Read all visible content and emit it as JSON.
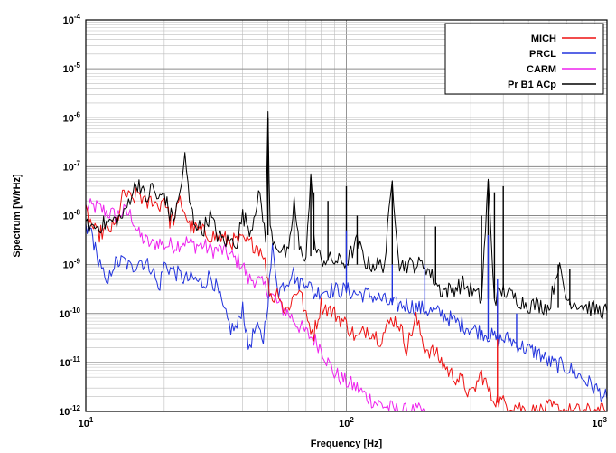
{
  "chart_data": {
    "type": "line",
    "xlabel": "Frequency [Hz]",
    "ylabel": "Spectrum [W/rHz]",
    "x_scale": "log",
    "y_scale": "log",
    "xlim": [
      10,
      1000
    ],
    "ylim": [
      1e-12,
      0.0001
    ],
    "x_ticks": [
      {
        "value": 10,
        "mantissa": "10",
        "exp": "1"
      },
      {
        "value": 100,
        "mantissa": "10",
        "exp": "2"
      },
      {
        "value": 1000,
        "mantissa": "10",
        "exp": "3"
      }
    ],
    "y_ticks": [
      {
        "value": 0.0001,
        "mantissa": "10",
        "exp": "-4"
      },
      {
        "value": 1e-05,
        "mantissa": "10",
        "exp": "-5"
      },
      {
        "value": 1e-06,
        "mantissa": "10",
        "exp": "-6"
      },
      {
        "value": 1e-07,
        "mantissa": "10",
        "exp": "-7"
      },
      {
        "value": 1e-08,
        "mantissa": "10",
        "exp": "-8"
      },
      {
        "value": 1e-09,
        "mantissa": "10",
        "exp": "-9"
      },
      {
        "value": 1e-10,
        "mantissa": "10",
        "exp": "-10"
      },
      {
        "value": 1e-11,
        "mantissa": "10",
        "exp": "-11"
      },
      {
        "value": 1e-12,
        "mantissa": "10",
        "exp": "-12"
      }
    ],
    "grid": true,
    "legend_position": "top-right",
    "series": [
      {
        "name": "MICH",
        "color": "#ee1111",
        "points": [
          [
            10,
            1.2e-08
          ],
          [
            11,
            4e-09
          ],
          [
            12,
            5e-09
          ],
          [
            13,
            6e-09
          ],
          [
            14,
            3e-08
          ],
          [
            15,
            2e-08
          ],
          [
            16,
            3e-08
          ],
          [
            17,
            1.6e-08
          ],
          [
            18,
            2.2e-08
          ],
          [
            19,
            1.5e-08
          ],
          [
            20,
            2.5e-08
          ],
          [
            21,
            8e-09
          ],
          [
            22,
            9e-09
          ],
          [
            23,
            2e-08
          ],
          [
            24,
            1.2e-08
          ],
          [
            25,
            6e-09
          ],
          [
            27,
            5e-09
          ],
          [
            30,
            4e-09
          ],
          [
            33,
            3.5e-09
          ],
          [
            36,
            3e-09
          ],
          [
            40,
            3e-09
          ],
          [
            45,
            2.5e-09
          ],
          [
            48,
            1.8e-09
          ],
          [
            50,
            4e-10
          ],
          [
            52,
            2e-10
          ],
          [
            55,
            3e-10
          ],
          [
            58,
            1e-10
          ],
          [
            62,
            2e-10
          ],
          [
            66,
            3.5e-10
          ],
          [
            70,
            8e-11
          ],
          [
            75,
            4e-11
          ],
          [
            80,
            1.5e-10
          ],
          [
            90,
            1e-10
          ],
          [
            100,
            6e-11
          ],
          [
            110,
            3e-11
          ],
          [
            120,
            5e-11
          ],
          [
            135,
            3e-11
          ],
          [
            150,
            8e-11
          ],
          [
            160,
            6e-11
          ],
          [
            170,
            2e-11
          ],
          [
            185,
            8e-11
          ],
          [
            200,
            2e-11
          ],
          [
            220,
            1.5e-11
          ],
          [
            250,
            6e-12
          ],
          [
            280,
            4e-12
          ],
          [
            300,
            2e-12
          ],
          [
            330,
            6e-12
          ],
          [
            360,
            2e-12
          ],
          [
            400,
            1.5e-12
          ],
          [
            450,
            1.3e-12
          ],
          [
            500,
            1e-12
          ],
          [
            550,
            1e-12
          ],
          [
            600,
            1.2e-12
          ],
          [
            700,
            1e-12
          ],
          [
            800,
            1e-12
          ],
          [
            900,
            1e-12
          ],
          [
            1000,
            1e-12
          ]
        ]
      },
      {
        "name": "PRCL",
        "color": "#2233dd",
        "points": [
          [
            10,
            5e-09
          ],
          [
            10.5,
            5e-09
          ],
          [
            11,
            1.5e-09
          ],
          [
            11.5,
            1e-09
          ],
          [
            12,
            3e-10
          ],
          [
            12.7,
            1e-09
          ],
          [
            14,
            1.2e-09
          ],
          [
            15,
            8e-10
          ],
          [
            16,
            1.3e-09
          ],
          [
            17,
            1e-09
          ],
          [
            18,
            9e-10
          ],
          [
            19,
            3e-10
          ],
          [
            20,
            1e-09
          ],
          [
            22,
            7e-10
          ],
          [
            24,
            5e-10
          ],
          [
            26,
            5e-10
          ],
          [
            28,
            4e-10
          ],
          [
            30,
            6e-10
          ],
          [
            32,
            3e-10
          ],
          [
            34,
            1e-10
          ],
          [
            36,
            5e-11
          ],
          [
            38,
            5e-11
          ],
          [
            40,
            1.5e-10
          ],
          [
            42,
            2e-11
          ],
          [
            45,
            5e-11
          ],
          [
            48,
            3e-11
          ],
          [
            50,
            2e-10
          ],
          [
            52,
            2e-09
          ],
          [
            55,
            3e-10
          ],
          [
            60,
            5e-10
          ],
          [
            62,
            8e-10
          ],
          [
            65,
            4e-10
          ],
          [
            70,
            5e-10
          ],
          [
            75,
            2.5e-10
          ],
          [
            80,
            3e-10
          ],
          [
            90,
            3e-10
          ],
          [
            100,
            3e-10
          ],
          [
            110,
            2.5e-10
          ],
          [
            120,
            2.5e-10
          ],
          [
            135,
            2e-10
          ],
          [
            150,
            1.5e-10
          ],
          [
            170,
            1.5e-10
          ],
          [
            200,
            1.2e-10
          ],
          [
            230,
            1e-10
          ],
          [
            260,
            7e-11
          ],
          [
            300,
            5e-11
          ],
          [
            340,
            4e-11
          ],
          [
            380,
            3e-11
          ],
          [
            420,
            3e-11
          ],
          [
            480,
            2e-11
          ],
          [
            550,
            1.5e-11
          ],
          [
            600,
            1e-11
          ],
          [
            700,
            8e-12
          ],
          [
            800,
            5e-12
          ],
          [
            900,
            3e-12
          ],
          [
            1000,
            1.8e-12
          ]
        ]
      },
      {
        "name": "CARM",
        "color": "#ee22ee",
        "points": [
          [
            10,
            1.5e-08
          ],
          [
            11,
            1.5e-08
          ],
          [
            12,
            1.2e-08
          ],
          [
            13,
            1e-08
          ],
          [
            14,
            1.2e-08
          ],
          [
            15,
            1e-08
          ],
          [
            16,
            4e-09
          ],
          [
            17,
            3e-09
          ],
          [
            18,
            2.5e-09
          ],
          [
            19,
            3e-09
          ],
          [
            20,
            2.5e-09
          ],
          [
            22,
            2.5e-09
          ],
          [
            24,
            3e-09
          ],
          [
            26,
            2.5e-09
          ],
          [
            28,
            2.5e-09
          ],
          [
            30,
            2e-09
          ],
          [
            33,
            2e-09
          ],
          [
            36,
            1.5e-09
          ],
          [
            40,
            1e-09
          ],
          [
            42,
            5e-10
          ],
          [
            45,
            5e-10
          ],
          [
            50,
            3e-10
          ],
          [
            55,
            1.5e-10
          ],
          [
            60,
            1e-10
          ],
          [
            65,
            6e-11
          ],
          [
            70,
            4e-11
          ],
          [
            75,
            3e-11
          ],
          [
            80,
            2e-11
          ],
          [
            85,
            1e-11
          ],
          [
            90,
            6e-12
          ],
          [
            100,
            4e-12
          ],
          [
            110,
            3e-12
          ],
          [
            120,
            2e-12
          ],
          [
            130,
            1.5e-12
          ],
          [
            140,
            1.3e-12
          ],
          [
            160,
            1e-12
          ],
          [
            180,
            1e-12
          ],
          [
            200,
            1e-12
          ]
        ]
      },
      {
        "name": "Pr B1 ACp",
        "color": "#000000",
        "points": [
          [
            10,
            6e-09
          ],
          [
            11,
            6e-09
          ],
          [
            12,
            7e-09
          ],
          [
            13,
            8e-09
          ],
          [
            14,
            1e-08
          ],
          [
            15,
            3e-08
          ],
          [
            16,
            5e-08
          ],
          [
            17,
            2e-08
          ],
          [
            18,
            4e-08
          ],
          [
            19,
            2e-08
          ],
          [
            20,
            3e-08
          ],
          [
            21,
            1e-08
          ],
          [
            22,
            1e-08
          ],
          [
            23,
            3e-08
          ],
          [
            24,
            1.5e-07
          ],
          [
            25,
            2e-08
          ],
          [
            26,
            8e-09
          ],
          [
            28,
            5e-09
          ],
          [
            30,
            1e-08
          ],
          [
            32,
            4e-09
          ],
          [
            34,
            3e-09
          ],
          [
            36,
            3e-09
          ],
          [
            38,
            3e-09
          ],
          [
            40,
            1e-08
          ],
          [
            43,
            5e-09
          ],
          [
            46,
            3e-08
          ],
          [
            49,
            4e-09
          ],
          [
            50,
            1e-06
          ],
          [
            51,
            5e-09
          ],
          [
            53,
            3e-09
          ],
          [
            56,
            2e-09
          ],
          [
            60,
            1.5e-09
          ],
          [
            63,
            2e-08
          ],
          [
            66,
            2e-09
          ],
          [
            70,
            1.5e-09
          ],
          [
            73,
            6e-08
          ],
          [
            76,
            2e-09
          ],
          [
            80,
            1.3e-09
          ],
          [
            90,
            1.2e-09
          ],
          [
            100,
            1.1e-09
          ],
          [
            110,
            3e-09
          ],
          [
            120,
            1e-09
          ],
          [
            130,
            1e-09
          ],
          [
            140,
            1e-09
          ],
          [
            150,
            5e-08
          ],
          [
            160,
            1e-09
          ],
          [
            180,
            1e-09
          ],
          [
            200,
            1e-09
          ],
          [
            230,
            3e-10
          ],
          [
            250,
            3e-10
          ],
          [
            280,
            4e-10
          ],
          [
            300,
            3e-10
          ],
          [
            330,
            2e-10
          ],
          [
            350,
            5e-08
          ],
          [
            370,
            2e-10
          ],
          [
            400,
            3e-10
          ],
          [
            450,
            2e-10
          ],
          [
            500,
            1.5e-10
          ],
          [
            550,
            1.5e-10
          ],
          [
            600,
            1.3e-10
          ],
          [
            650,
            1e-09
          ],
          [
            700,
            2e-10
          ],
          [
            800,
            1.5e-10
          ],
          [
            900,
            1.2e-10
          ],
          [
            1000,
            1.1e-10
          ]
        ]
      }
    ],
    "spikes": [
      {
        "series": "Pr B1 ACp",
        "x": 50,
        "y": 1e-06,
        "floor": 4e-09
      },
      {
        "series": "Pr B1 ACp",
        "x": 63,
        "y": 2e-08,
        "floor": 2e-09
      },
      {
        "series": "Pr B1 ACp",
        "x": 73,
        "y": 6e-08,
        "floor": 1.5e-09
      },
      {
        "series": "Pr B1 ACp",
        "x": 75,
        "y": 3e-08,
        "floor": 2e-09
      },
      {
        "series": "Pr B1 ACp",
        "x": 85,
        "y": 2e-08,
        "floor": 1.2e-09
      },
      {
        "series": "Pr B1 ACp",
        "x": 100,
        "y": 4e-08,
        "floor": 1.1e-09
      },
      {
        "series": "Pr B1 ACp",
        "x": 110,
        "y": 1e-08,
        "floor": 1e-09
      },
      {
        "series": "Pr B1 ACp",
        "x": 150,
        "y": 5e-08,
        "floor": 1e-09
      },
      {
        "series": "Pr B1 ACp",
        "x": 200,
        "y": 1e-08,
        "floor": 1e-09
      },
      {
        "series": "Pr B1 ACp",
        "x": 220,
        "y": 6e-09,
        "floor": 4e-10
      },
      {
        "series": "Pr B1 ACp",
        "x": 330,
        "y": 1e-08,
        "floor": 2e-10
      },
      {
        "series": "Pr B1 ACp",
        "x": 350,
        "y": 5e-08,
        "floor": 2e-10
      },
      {
        "series": "Pr B1 ACp",
        "x": 370,
        "y": 3e-08,
        "floor": 2e-10
      },
      {
        "series": "Pr B1 ACp",
        "x": 400,
        "y": 4e-08,
        "floor": 3e-10
      },
      {
        "series": "Pr B1 ACp",
        "x": 650,
        "y": 1e-09,
        "floor": 1.3e-10
      },
      {
        "series": "Pr B1 ACp",
        "x": 720,
        "y": 8e-10,
        "floor": 1.5e-10
      },
      {
        "series": "MICH",
        "x": 380,
        "y": 2e-10,
        "floor": 1.5e-12
      },
      {
        "series": "PRCL",
        "x": 100,
        "y": 5e-09,
        "floor": 3e-10
      },
      {
        "series": "PRCL",
        "x": 150,
        "y": 1e-09,
        "floor": 1.5e-10
      },
      {
        "series": "PRCL",
        "x": 200,
        "y": 1e-09,
        "floor": 1.2e-10
      },
      {
        "series": "PRCL",
        "x": 350,
        "y": 4e-09,
        "floor": 3e-11
      },
      {
        "series": "PRCL",
        "x": 380,
        "y": 5e-10,
        "floor": 3e-11
      },
      {
        "series": "PRCL",
        "x": 450,
        "y": 1e-10,
        "floor": 2e-11
      }
    ]
  }
}
